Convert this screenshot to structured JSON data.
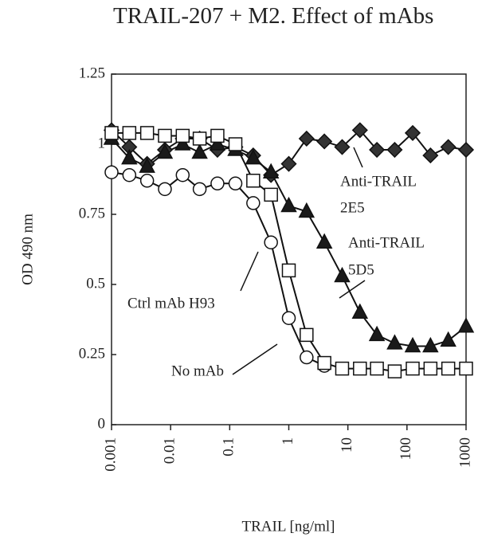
{
  "chart_data": {
    "type": "line",
    "title": "TRAIL-207 + M2. Effect of mAbs",
    "x_label": "TRAIL [ng/ml]",
    "y_label": "OD 490 nm",
    "xscale": "log",
    "x": [
      0.001,
      0.002,
      0.004,
      0.008,
      0.016,
      0.031,
      0.062,
      0.125,
      0.25,
      0.5,
      1,
      2,
      4,
      8,
      16,
      31,
      62,
      125,
      250,
      500,
      1000
    ],
    "xlim": [
      0.001,
      1000
    ],
    "xticks": [
      0.001,
      0.01,
      0.1,
      1,
      10,
      100,
      1000
    ],
    "ylim": [
      0,
      1.25
    ],
    "yticks": [
      0,
      0.25,
      0.5,
      0.75,
      1,
      1.25
    ],
    "series": [
      {
        "name": "Anti-TRAIL 2E5",
        "marker": "diamond",
        "color": "#333333",
        "values": [
          1.05,
          0.99,
          0.93,
          0.98,
          1.02,
          1.02,
          0.98,
          0.99,
          0.96,
          0.89,
          0.93,
          1.02,
          1.01,
          0.99,
          1.05,
          0.98,
          0.98,
          1.04,
          0.96,
          0.99,
          0.98
        ]
      },
      {
        "name": "Anti-TRAIL 5D5",
        "marker": "triangle",
        "color": "#1a1a1a",
        "values": [
          1.02,
          0.95,
          0.92,
          0.97,
          1.0,
          0.97,
          1.0,
          0.98,
          0.95,
          0.9,
          0.78,
          0.76,
          0.65,
          0.53,
          0.4,
          0.32,
          0.29,
          0.28,
          0.28,
          0.3,
          0.35
        ]
      },
      {
        "name": "Ctrl mAb H93",
        "marker": "circle",
        "color": "#ffffff",
        "values": [
          0.9,
          0.89,
          0.87,
          0.84,
          0.89,
          0.84,
          0.86,
          0.86,
          0.79,
          0.65,
          0.38,
          0.24,
          0.21,
          null,
          null,
          null,
          null,
          null,
          null,
          null,
          null
        ]
      },
      {
        "name": "No mAb",
        "marker": "square",
        "color": "#ffffff",
        "values": [
          1.04,
          1.04,
          1.04,
          1.03,
          1.03,
          1.02,
          1.03,
          1.0,
          0.87,
          0.82,
          0.55,
          0.32,
          0.22,
          0.2,
          0.2,
          0.2,
          0.19,
          0.2,
          0.2,
          0.2,
          0.2
        ]
      }
    ],
    "annotations": [
      {
        "lines": [
          "Anti-TRAIL",
          "2E5"
        ]
      },
      {
        "lines": [
          "Anti-TRAIL",
          "5D5"
        ]
      },
      {
        "lines": [
          "Ctrl mAb H93"
        ]
      },
      {
        "lines": [
          "No mAb"
        ]
      }
    ]
  }
}
